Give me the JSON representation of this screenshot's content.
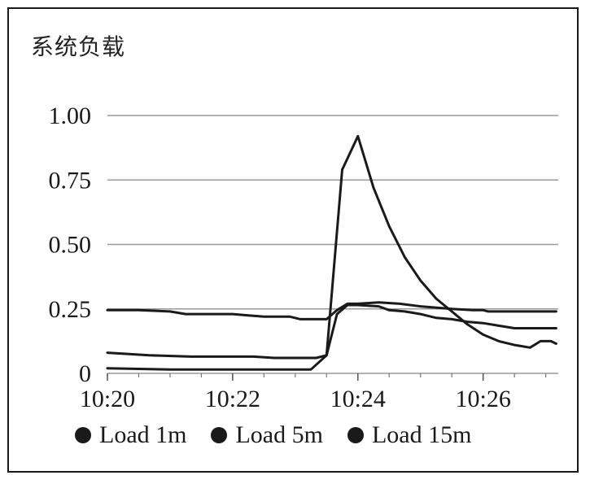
{
  "panel": {
    "title": "系统负载"
  },
  "chart_data": {
    "type": "line",
    "title": "系统负载",
    "xlabel": "",
    "ylabel": "",
    "x_ticks": [
      "10:20",
      "10:22",
      "10:24",
      "10:26"
    ],
    "y_ticks": [
      "0",
      "0.25",
      "0.50",
      "0.75",
      "1.00"
    ],
    "xlim": [
      "10:20",
      "10:27:12"
    ],
    "ylim": [
      0,
      1
    ],
    "grid": "horizontal",
    "legend_position": "bottom",
    "line_color": "#1a1a1a",
    "series": [
      {
        "name": "Load 1m",
        "points": [
          [
            "10:20:00",
            0.02
          ],
          [
            "10:21:00",
            0.015
          ],
          [
            "10:22:00",
            0.015
          ],
          [
            "10:23:00",
            0.015
          ],
          [
            "10:23:15",
            0.015
          ],
          [
            "10:23:30",
            0.07
          ],
          [
            "10:23:45",
            0.79
          ],
          [
            "10:24:00",
            0.92
          ],
          [
            "10:24:15",
            0.72
          ],
          [
            "10:24:30",
            0.57
          ],
          [
            "10:24:45",
            0.45
          ],
          [
            "10:25:00",
            0.36
          ],
          [
            "10:25:15",
            0.29
          ],
          [
            "10:25:30",
            0.24
          ],
          [
            "10:25:45",
            0.19
          ],
          [
            "10:26:00",
            0.15
          ],
          [
            "10:26:15",
            0.125
          ],
          [
            "10:26:30",
            0.11
          ],
          [
            "10:26:45",
            0.1
          ],
          [
            "10:26:55",
            0.125
          ],
          [
            "10:27:05",
            0.125
          ],
          [
            "10:27:10",
            0.115
          ]
        ]
      },
      {
        "name": "Load 5m",
        "points": [
          [
            "10:20:00",
            0.08
          ],
          [
            "10:20:40",
            0.07
          ],
          [
            "10:21:20",
            0.065
          ],
          [
            "10:22:00",
            0.065
          ],
          [
            "10:22:20",
            0.065
          ],
          [
            "10:22:40",
            0.06
          ],
          [
            "10:23:00",
            0.06
          ],
          [
            "10:23:20",
            0.06
          ],
          [
            "10:23:30",
            0.07
          ],
          [
            "10:23:40",
            0.23
          ],
          [
            "10:23:50",
            0.265
          ],
          [
            "10:24:00",
            0.265
          ],
          [
            "10:24:20",
            0.26
          ],
          [
            "10:24:30",
            0.245
          ],
          [
            "10:24:45",
            0.24
          ],
          [
            "10:25:00",
            0.23
          ],
          [
            "10:25:15",
            0.215
          ],
          [
            "10:25:30",
            0.21
          ],
          [
            "10:25:45",
            0.2
          ],
          [
            "10:26:00",
            0.195
          ],
          [
            "10:26:15",
            0.185
          ],
          [
            "10:26:30",
            0.175
          ],
          [
            "10:26:45",
            0.175
          ],
          [
            "10:27:10",
            0.175
          ]
        ]
      },
      {
        "name": "Load 15m",
        "points": [
          [
            "10:20:00",
            0.245
          ],
          [
            "10:20:30",
            0.245
          ],
          [
            "10:21:00",
            0.24
          ],
          [
            "10:21:15",
            0.23
          ],
          [
            "10:21:30",
            0.23
          ],
          [
            "10:22:00",
            0.23
          ],
          [
            "10:22:15",
            0.225
          ],
          [
            "10:22:30",
            0.22
          ],
          [
            "10:22:55",
            0.22
          ],
          [
            "10:23:05",
            0.21
          ],
          [
            "10:23:20",
            0.21
          ],
          [
            "10:23:30",
            0.21
          ],
          [
            "10:23:40",
            0.245
          ],
          [
            "10:23:50",
            0.27
          ],
          [
            "10:24:00",
            0.27
          ],
          [
            "10:24:20",
            0.275
          ],
          [
            "10:24:40",
            0.27
          ],
          [
            "10:25:00",
            0.26
          ],
          [
            "10:25:30",
            0.25
          ],
          [
            "10:25:50",
            0.245
          ],
          [
            "10:26:00",
            0.245
          ],
          [
            "10:26:05",
            0.24
          ],
          [
            "10:26:20",
            0.24
          ],
          [
            "10:26:40",
            0.24
          ],
          [
            "10:27:10",
            0.24
          ]
        ]
      }
    ]
  }
}
